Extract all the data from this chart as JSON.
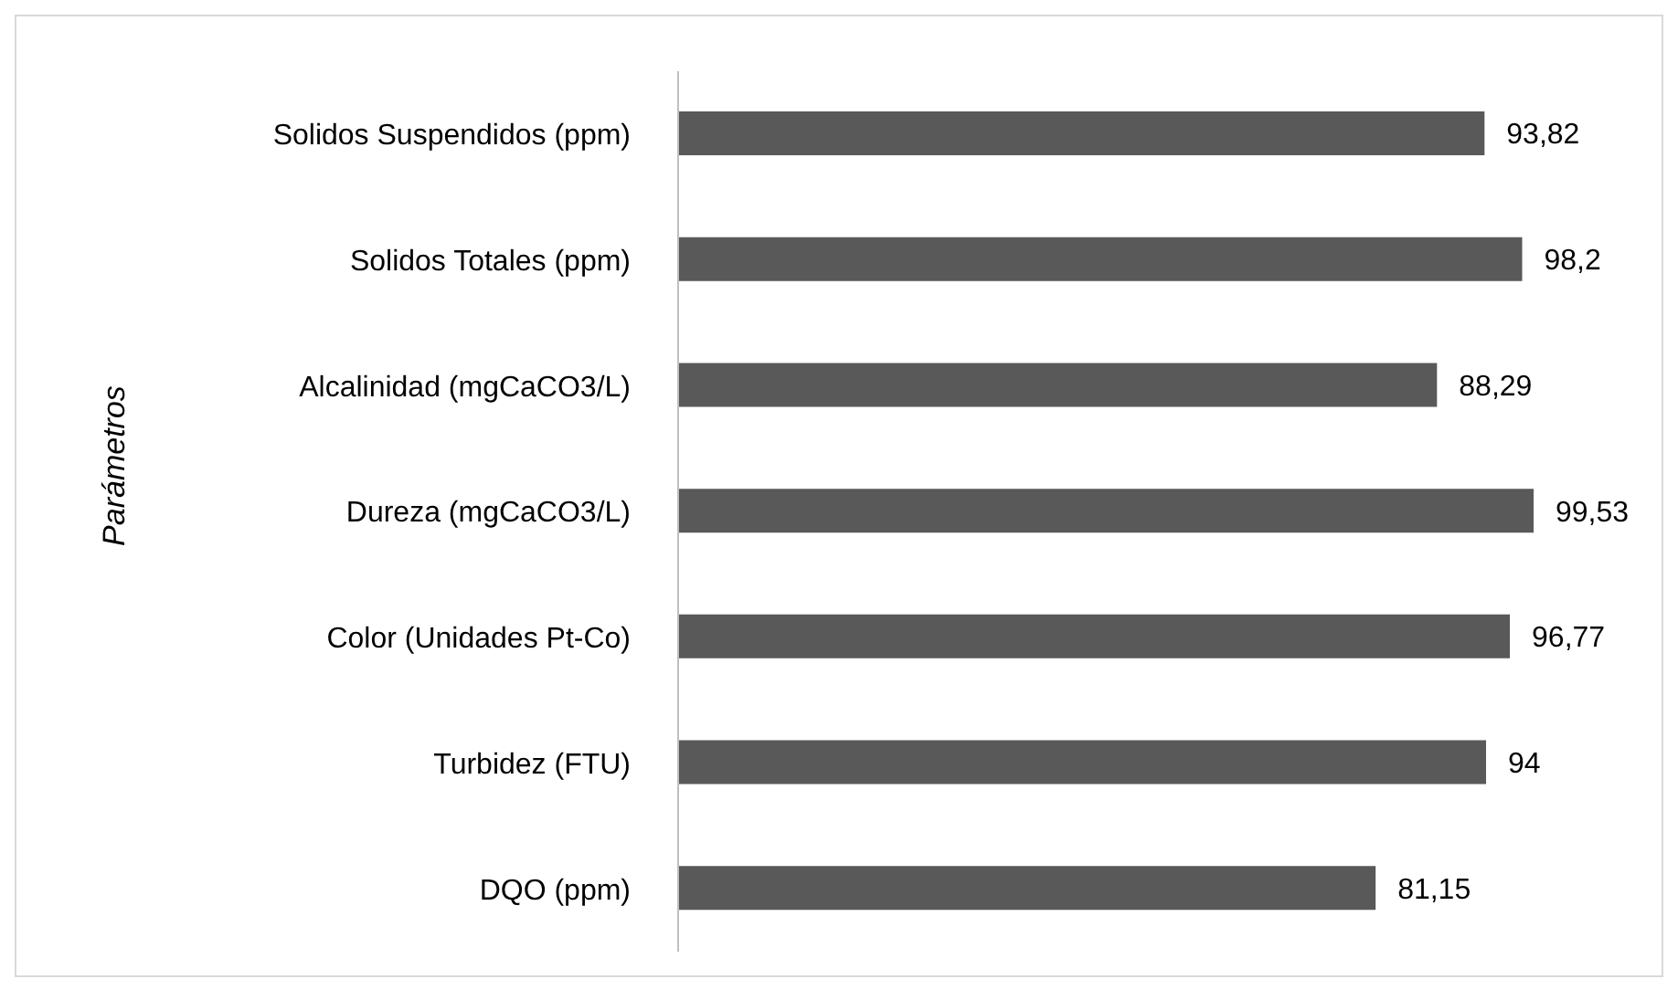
{
  "chart_data": {
    "type": "bar",
    "orientation": "horizontal",
    "ylabel": "Parámetros",
    "categories": [
      "Solidos Suspendidos (ppm)",
      "Solidos Totales (ppm)",
      "Alcalinidad (mgCaCO3/L)",
      "Dureza (mgCaCO3/L)",
      "Color (Unidades Pt-Co)",
      "Turbidez (FTU)",
      "DQO (ppm)"
    ],
    "values": [
      93.82,
      98.2,
      88.29,
      99.53,
      96.77,
      94,
      81.15
    ],
    "value_labels": [
      "93,82",
      "98,2",
      "88,29",
      "99,53",
      "96,77",
      "94",
      "81,15"
    ],
    "color": "#595959",
    "grid": false,
    "legend": false
  }
}
